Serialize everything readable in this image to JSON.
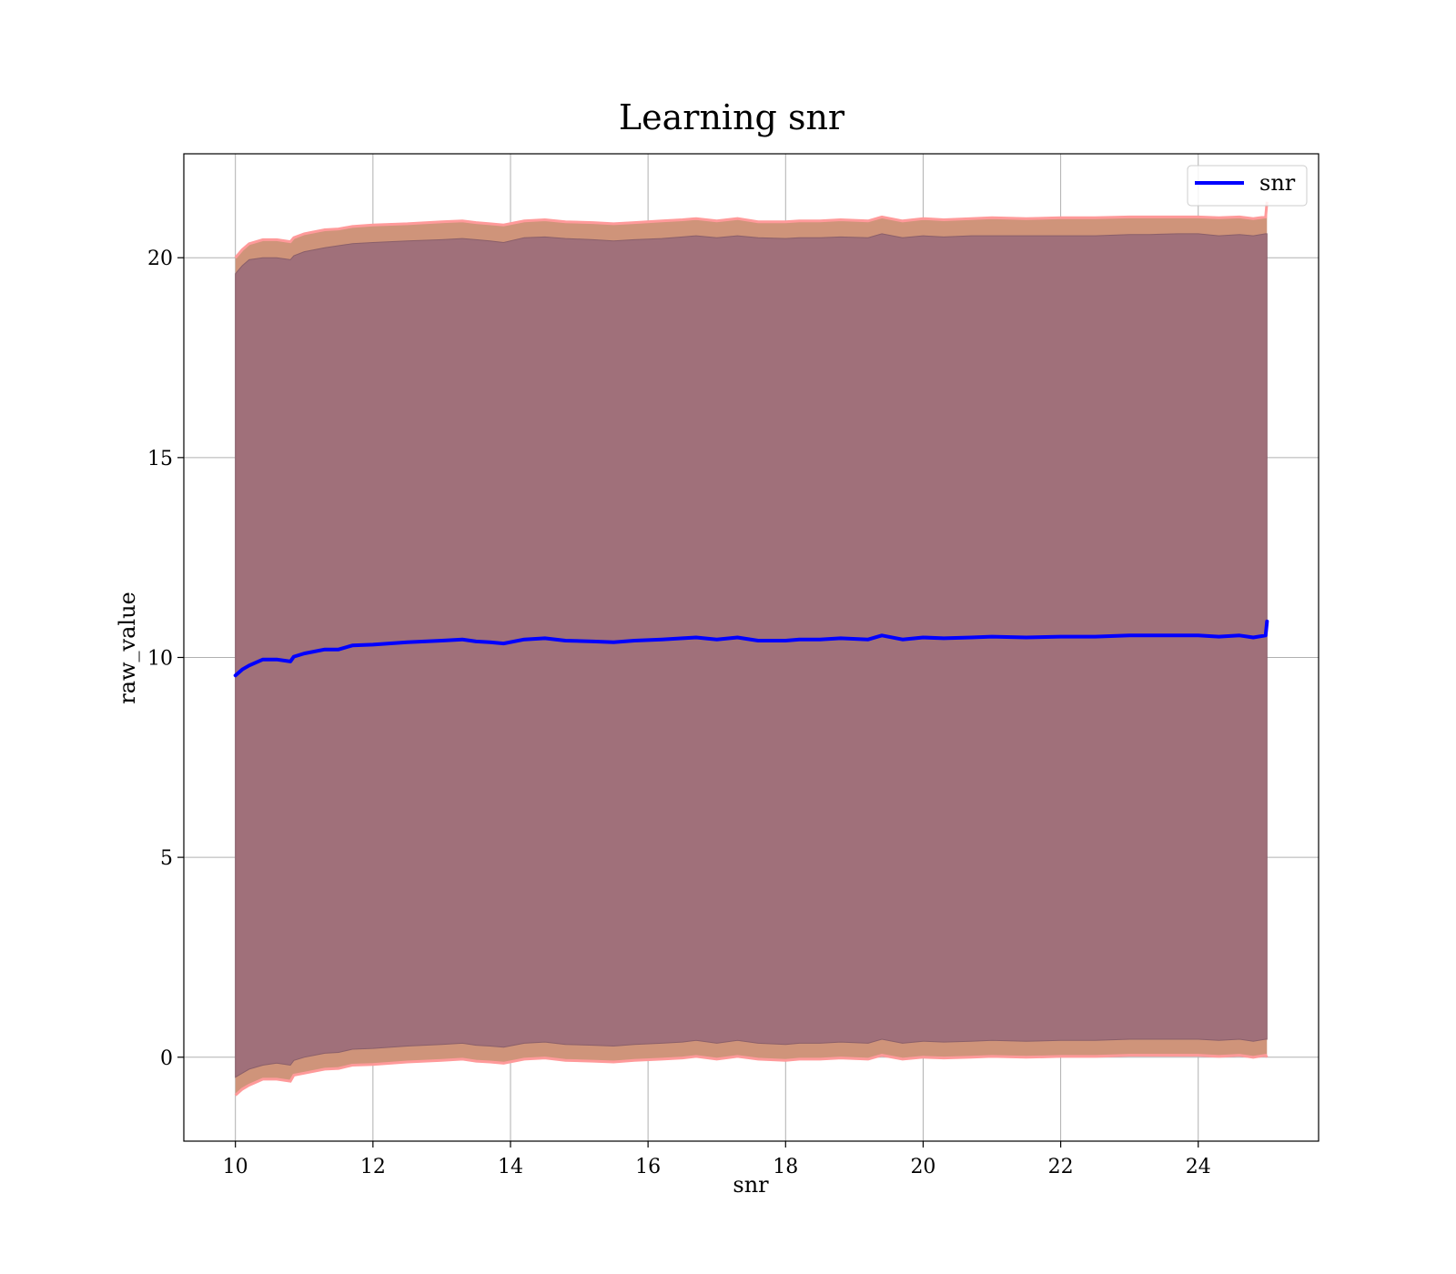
{
  "chart_data": {
    "type": "line",
    "title": "Learning snr",
    "xlabel": "snr",
    "ylabel": "raw_value",
    "xlim": [
      9.25,
      25.75
    ],
    "ylim": [
      -2.1,
      22.6
    ],
    "xticks": [
      10,
      12,
      14,
      16,
      18,
      20,
      22,
      24
    ],
    "yticks": [
      0,
      5,
      10,
      15,
      20
    ],
    "grid": true,
    "legend": {
      "placement": "top-right"
    },
    "colors": {
      "line": "#0000ff",
      "outer_band": "#cf947a",
      "outer_band_edge": "#ff9a9a",
      "inner_band": "#a0707a"
    },
    "series": [
      {
        "name": "snr",
        "x": [
          10.0,
          10.1,
          10.2,
          10.4,
          10.6,
          10.8,
          10.85,
          11.0,
          11.3,
          11.5,
          11.7,
          12.0,
          12.5,
          13.0,
          13.3,
          13.5,
          13.7,
          13.9,
          14.2,
          14.5,
          14.8,
          15.2,
          15.5,
          15.8,
          16.2,
          16.5,
          16.7,
          17.0,
          17.3,
          17.6,
          18.0,
          18.2,
          18.5,
          18.8,
          19.2,
          19.4,
          19.7,
          20.0,
          20.3,
          20.7,
          21.0,
          21.5,
          22.0,
          22.5,
          23.0,
          23.3,
          23.7,
          24.0,
          24.3,
          24.6,
          24.8,
          24.98,
          25.0
        ],
        "y": [
          9.55,
          9.7,
          9.8,
          9.95,
          9.95,
          9.9,
          10.02,
          10.1,
          10.2,
          10.2,
          10.3,
          10.32,
          10.38,
          10.42,
          10.45,
          10.4,
          10.38,
          10.35,
          10.45,
          10.48,
          10.42,
          10.4,
          10.38,
          10.42,
          10.45,
          10.48,
          10.5,
          10.45,
          10.5,
          10.42,
          10.42,
          10.45,
          10.45,
          10.48,
          10.45,
          10.55,
          10.45,
          10.5,
          10.48,
          10.5,
          10.52,
          10.5,
          10.52,
          10.52,
          10.55,
          10.55,
          10.55,
          10.55,
          10.52,
          10.55,
          10.5,
          10.55,
          10.9
        ],
        "band_inner_upper": [
          19.6,
          19.8,
          19.95,
          20.0,
          20.0,
          19.95,
          20.05,
          20.15,
          20.25,
          20.3,
          20.35,
          20.38,
          20.42,
          20.45,
          20.48,
          20.45,
          20.42,
          20.38,
          20.5,
          20.52,
          20.48,
          20.45,
          20.42,
          20.45,
          20.48,
          20.52,
          20.55,
          20.5,
          20.55,
          20.5,
          20.48,
          20.5,
          20.5,
          20.52,
          20.5,
          20.6,
          20.5,
          20.55,
          20.52,
          20.55,
          20.55,
          20.55,
          20.55,
          20.55,
          20.58,
          20.58,
          20.6,
          20.6,
          20.55,
          20.58,
          20.55,
          20.6,
          20.6
        ],
        "band_inner_lower": [
          -0.5,
          -0.4,
          -0.3,
          -0.2,
          -0.15,
          -0.2,
          -0.08,
          0.0,
          0.1,
          0.12,
          0.2,
          0.22,
          0.28,
          0.32,
          0.35,
          0.3,
          0.28,
          0.25,
          0.35,
          0.38,
          0.32,
          0.3,
          0.28,
          0.32,
          0.35,
          0.38,
          0.42,
          0.35,
          0.42,
          0.35,
          0.32,
          0.35,
          0.35,
          0.38,
          0.35,
          0.45,
          0.35,
          0.4,
          0.38,
          0.4,
          0.42,
          0.4,
          0.42,
          0.42,
          0.45,
          0.45,
          0.45,
          0.45,
          0.42,
          0.45,
          0.4,
          0.45,
          0.45
        ],
        "band_outer_upper": [
          20.0,
          20.2,
          20.35,
          20.45,
          20.45,
          20.4,
          20.5,
          20.6,
          20.7,
          20.72,
          20.78,
          20.82,
          20.85,
          20.9,
          20.92,
          20.88,
          20.85,
          20.82,
          20.92,
          20.95,
          20.9,
          20.88,
          20.85,
          20.88,
          20.92,
          20.95,
          20.98,
          20.92,
          20.98,
          20.9,
          20.9,
          20.92,
          20.92,
          20.95,
          20.92,
          21.02,
          20.92,
          20.98,
          20.95,
          20.98,
          21.0,
          20.98,
          21.0,
          21.0,
          21.02,
          21.02,
          21.02,
          21.02,
          21.0,
          21.02,
          20.98,
          21.02,
          21.4
        ],
        "band_outer_lower": [
          -0.95,
          -0.8,
          -0.7,
          -0.55,
          -0.55,
          -0.6,
          -0.45,
          -0.4,
          -0.3,
          -0.28,
          -0.2,
          -0.18,
          -0.12,
          -0.08,
          -0.05,
          -0.1,
          -0.12,
          -0.15,
          -0.05,
          -0.02,
          -0.08,
          -0.1,
          -0.12,
          -0.08,
          -0.05,
          -0.02,
          0.02,
          -0.05,
          0.02,
          -0.05,
          -0.08,
          -0.05,
          -0.05,
          -0.02,
          -0.05,
          0.05,
          -0.05,
          0.0,
          -0.02,
          0.0,
          0.02,
          0.0,
          0.02,
          0.02,
          0.05,
          0.05,
          0.05,
          0.05,
          0.02,
          0.05,
          0.0,
          0.05,
          0.0
        ]
      }
    ]
  }
}
